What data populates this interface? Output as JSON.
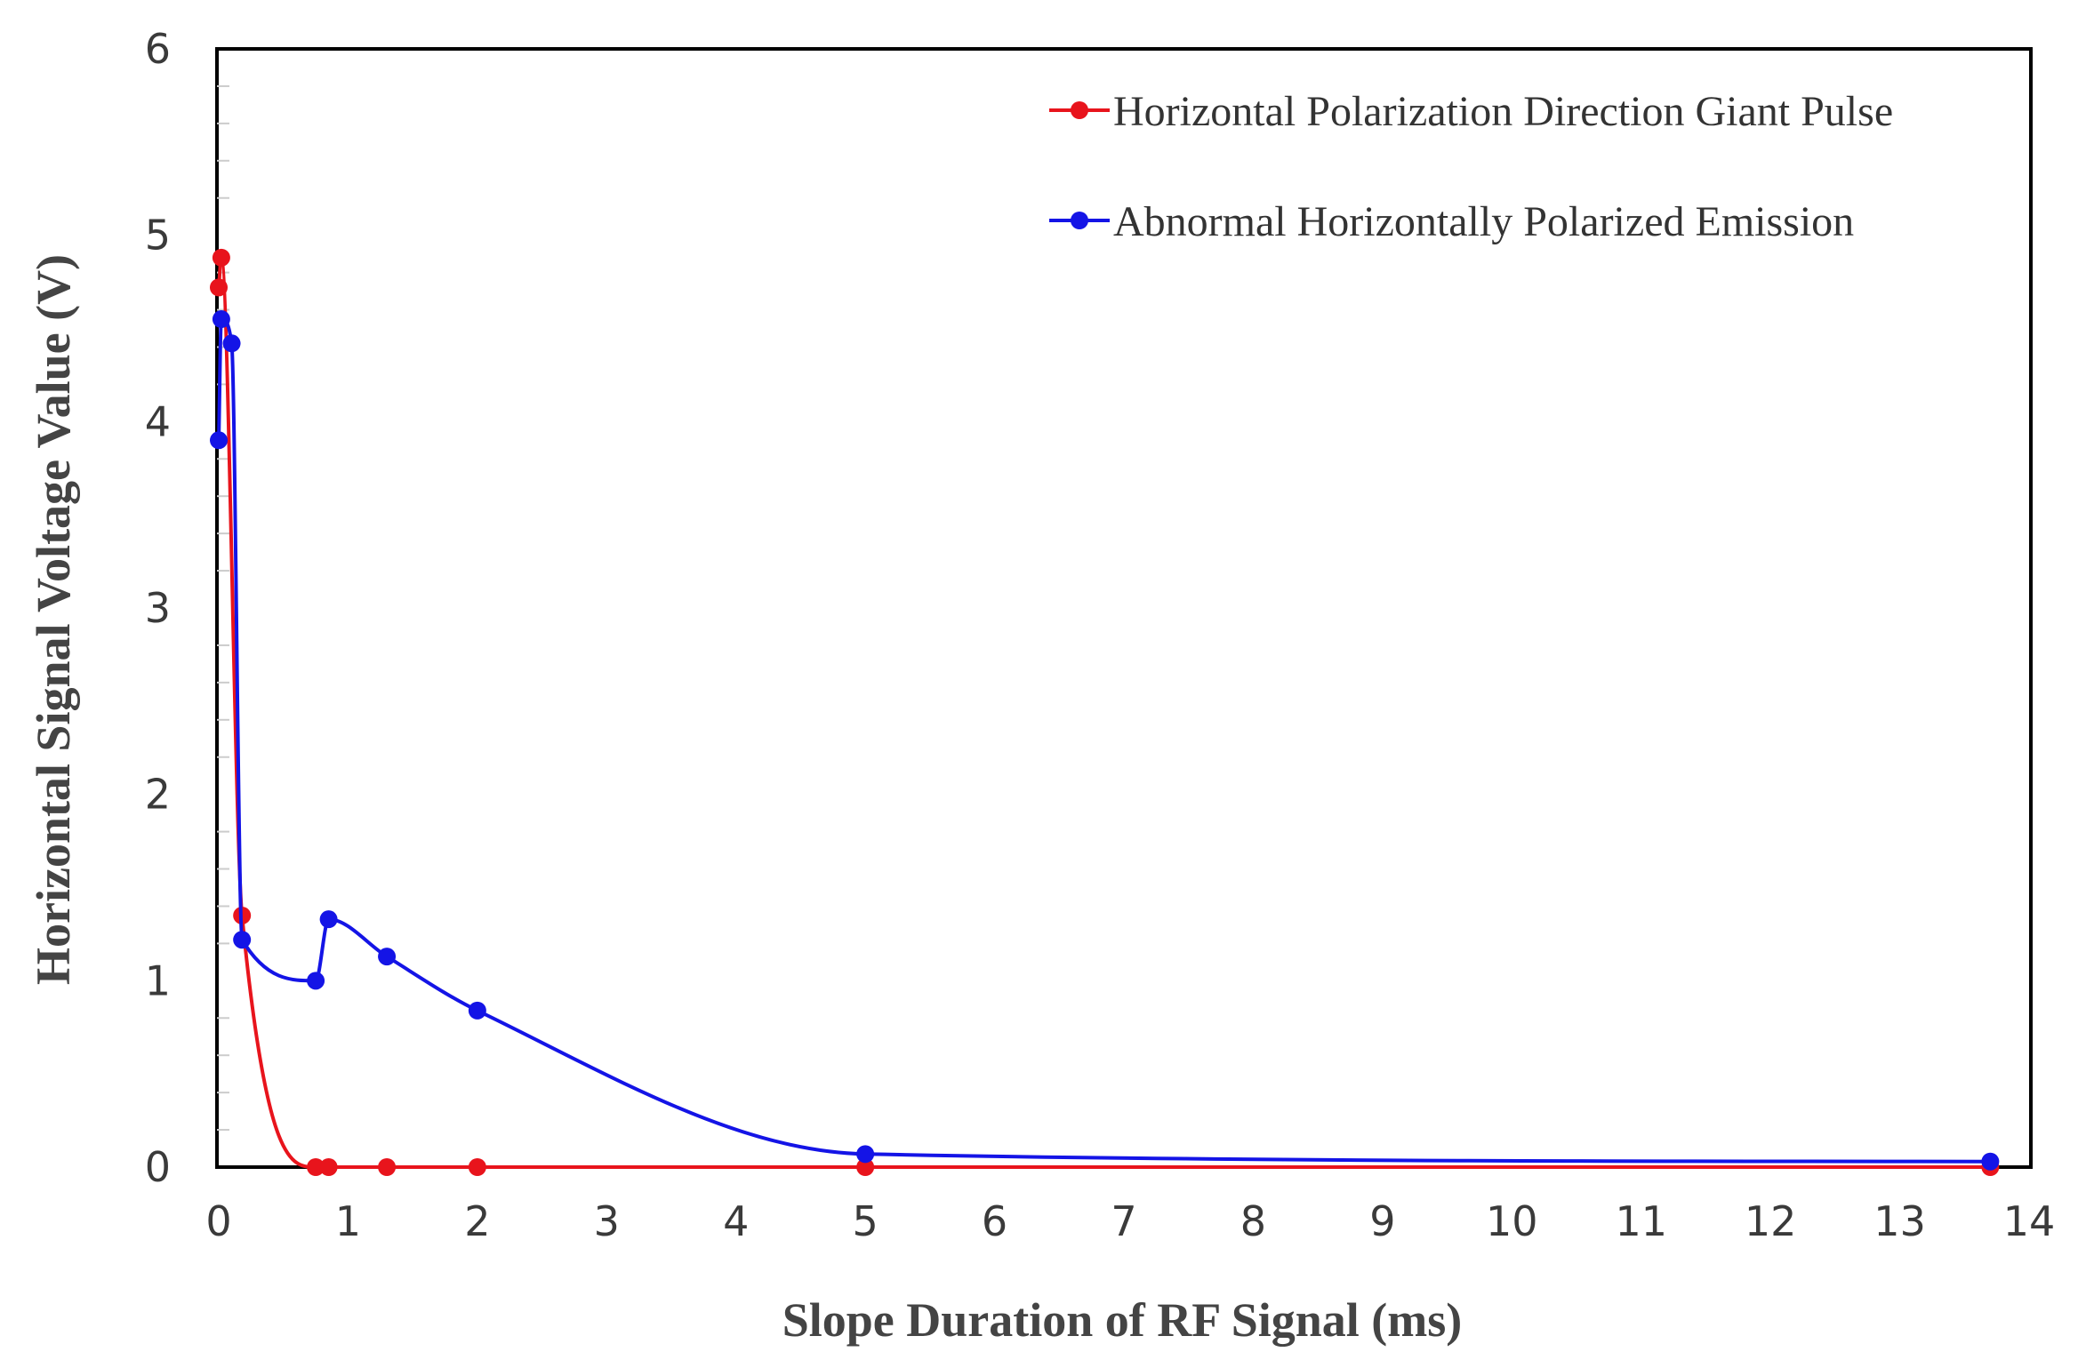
{
  "chart_data": {
    "type": "line",
    "xlabel": "Slope Duration of RF Signal (ms)",
    "ylabel": "Horizontal Signal Voltage Value (V)",
    "xlim": [
      0,
      14
    ],
    "ylim": [
      0,
      6
    ],
    "x_ticks": [
      "0",
      "1",
      "2",
      "3",
      "4",
      "5",
      "6",
      "7",
      "8",
      "9",
      "10",
      "11",
      "12",
      "13",
      "14"
    ],
    "y_ticks": [
      "0",
      "1",
      "2",
      "3",
      "4",
      "5",
      "6"
    ],
    "grid": false,
    "legend_position": "top-right",
    "series": [
      {
        "name": "Horizontal Polarization Direction Giant Pulse",
        "color": "#e8141c",
        "x": [
          0,
          0.02,
          0.18,
          0.75,
          0.85,
          1.3,
          2.0,
          5.0,
          13.7
        ],
        "y": [
          4.72,
          4.88,
          1.35,
          0,
          0,
          0,
          0,
          0,
          0
        ]
      },
      {
        "name": "Abnormal Horizontally Polarized Emission",
        "color": "#1414e6",
        "x": [
          0,
          0.02,
          0.1,
          0.18,
          0.75,
          0.85,
          1.3,
          2.0,
          5.0,
          13.7
        ],
        "y": [
          3.9,
          4.55,
          4.42,
          1.22,
          1.0,
          1.33,
          1.13,
          0.84,
          0.07,
          0.03
        ]
      }
    ]
  }
}
